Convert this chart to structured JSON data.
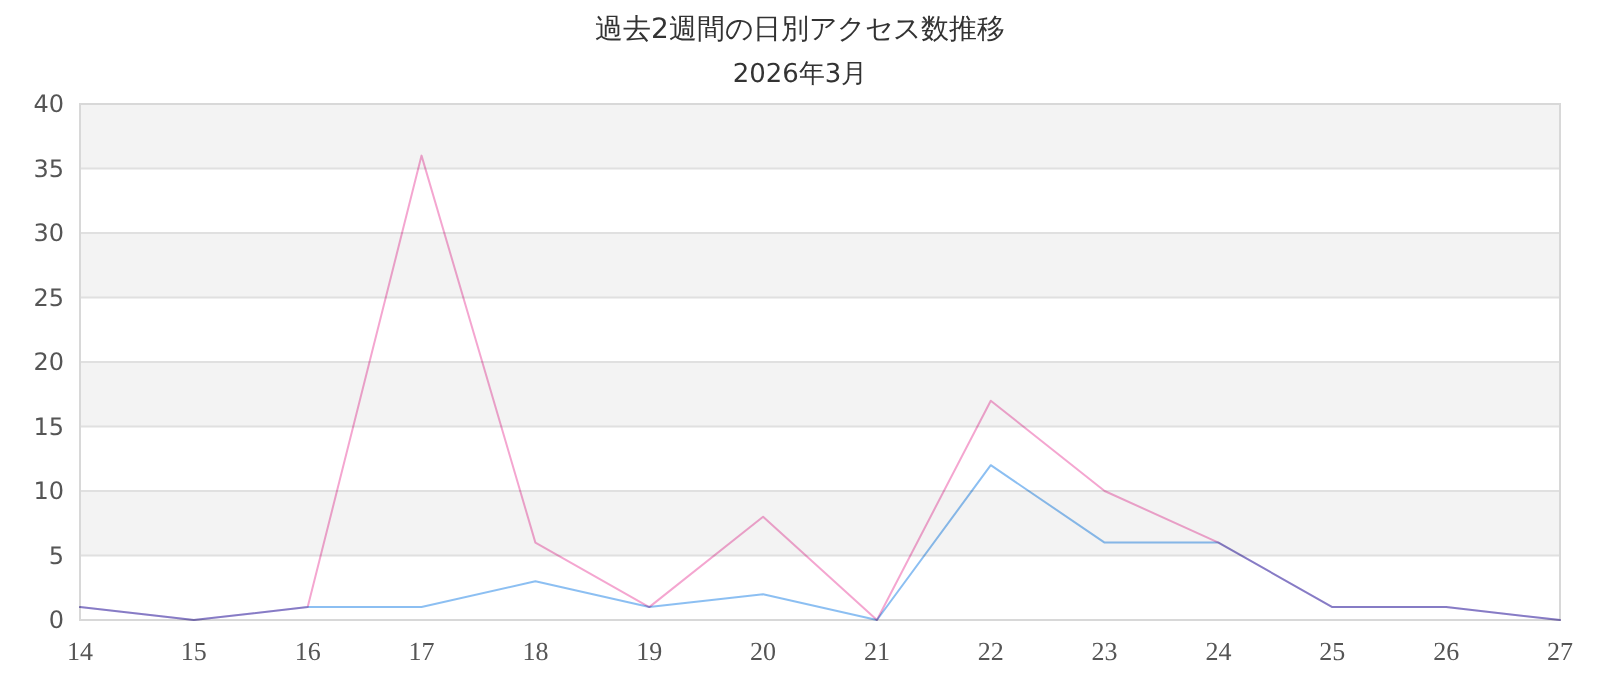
{
  "chart_data": {
    "type": "line",
    "title": "過去2週間の日別アクセス数推移",
    "subtitle": "2026年3月",
    "x": [
      14,
      15,
      16,
      17,
      18,
      19,
      20,
      21,
      22,
      23,
      24,
      25,
      26,
      27
    ],
    "series": [
      {
        "color": "#66aaee",
        "values": [
          1,
          0,
          1,
          1,
          3,
          1,
          2,
          0,
          12,
          6,
          6,
          1,
          1,
          0
        ]
      },
      {
        "color": "#f088c0",
        "values": [
          1,
          0,
          1,
          36,
          6,
          1,
          8,
          0,
          17,
          10,
          6,
          1,
          1,
          0
        ]
      }
    ],
    "xlim": [
      14,
      27
    ],
    "xticks": [
      14,
      15,
      16,
      17,
      18,
      19,
      20,
      21,
      22,
      23,
      24,
      25,
      26,
      27
    ],
    "ylim": [
      0,
      40
    ],
    "yticks": [
      0,
      5,
      10,
      15,
      20,
      25,
      30,
      35,
      40
    ],
    "grid": "y",
    "marker": "none",
    "line_style": "solid"
  }
}
